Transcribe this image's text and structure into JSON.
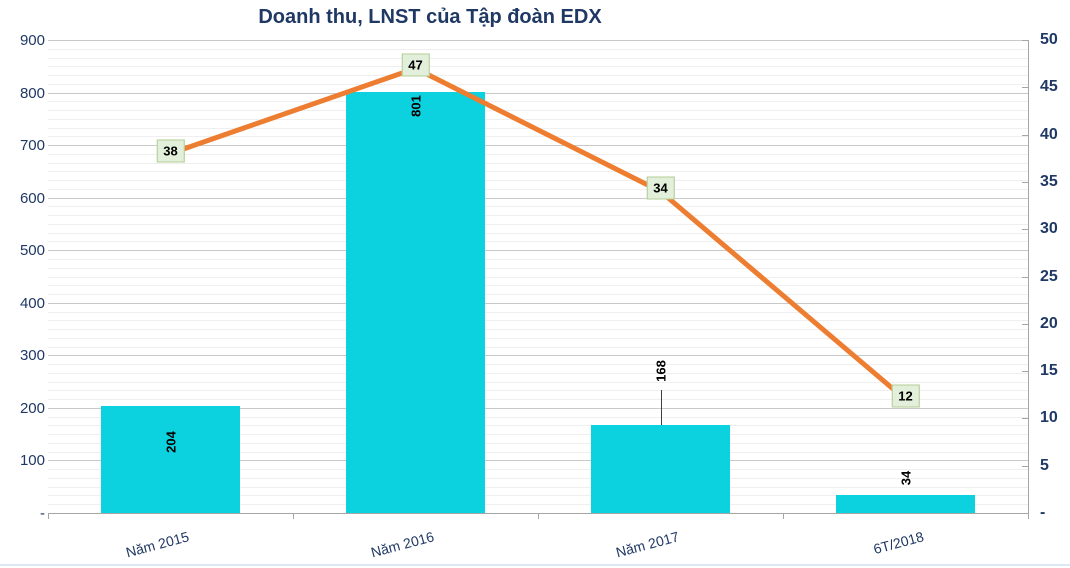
{
  "title": "Doanh thu, LNST của Tập đoàn EDX",
  "colors": {
    "title_text": "#1f3864",
    "axis_text": "#1f3864",
    "bar_fill": "#0cd2e0",
    "line_stroke": "#ed7d31",
    "value_label_text": "#000000",
    "line_label_fill": "#e2efda",
    "line_label_border": "#b4cc96",
    "major_grid": "#c9c9c9",
    "minor_grid": "#efefef",
    "axis_line": "#a6a6a6",
    "leader_line": "#404040",
    "bottom_border": "#dbe7f3"
  },
  "chart_data": {
    "type": "combo",
    "title": "Doanh thu, LNST của Tập đoàn EDX",
    "categories": [
      "Năm 2015",
      "Năm 2016",
      "Năm 2017",
      "6T/2018"
    ],
    "series": [
      {
        "type": "bar",
        "axis": "left",
        "values": [
          204,
          801,
          168,
          34
        ],
        "labels": [
          "204",
          "801",
          "168",
          "34"
        ],
        "label_placement": [
          "inside",
          "inside-end",
          "callout",
          "above"
        ],
        "color": "#0cd2e0"
      },
      {
        "type": "line",
        "axis": "right",
        "values": [
          38,
          47,
          34,
          12
        ],
        "labels": [
          "38",
          "47",
          "34",
          "12"
        ],
        "color": "#ed7d31"
      }
    ],
    "left_axis": {
      "min": 0,
      "max": 900,
      "step": 100,
      "tick_labels": [
        "-",
        "100",
        "200",
        "300",
        "400",
        "500",
        "600",
        "700",
        "800",
        "900"
      ]
    },
    "right_axis": {
      "min": 0,
      "max": 50,
      "step": 5,
      "tick_labels": [
        "-",
        "5",
        "10",
        "15",
        "20",
        "25",
        "30",
        "35",
        "40",
        "45",
        "50"
      ]
    },
    "grid": {
      "major": true,
      "minor": true
    },
    "legend": "none",
    "x_tick_rotation_deg": -15
  }
}
